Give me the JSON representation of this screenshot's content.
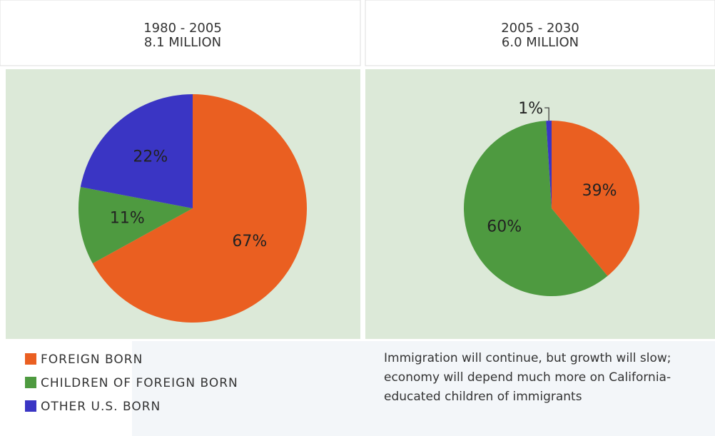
{
  "chart_data": [
    {
      "type": "pie",
      "title": "1980 - 2005",
      "subtitle": "8.1 MILLION",
      "categories": [
        "FOREIGN BORN",
        "CHILDREN OF FOREIGN BORN",
        "OTHER U.S. BORN"
      ],
      "values": [
        67,
        11,
        22
      ],
      "value_labels": [
        "67%",
        "11%",
        "22%"
      ],
      "colors": [
        "#ea5f21",
        "#4e9a40",
        "#3a35c4"
      ]
    },
    {
      "type": "pie",
      "title": "2005 - 2030",
      "subtitle": "6.0 MILLION",
      "categories": [
        "FOREIGN BORN",
        "CHILDREN OF FOREIGN BORN",
        "OTHER U.S. BORN"
      ],
      "values": [
        39,
        60,
        1
      ],
      "value_labels": [
        "39%",
        "60%",
        "1%"
      ],
      "colors": [
        "#ea5f21",
        "#4e9a40",
        "#3a35c4"
      ]
    }
  ],
  "annotation": "Immigration will continue, but growth will slow; economy will depend much more on California-educated children of immigrants"
}
